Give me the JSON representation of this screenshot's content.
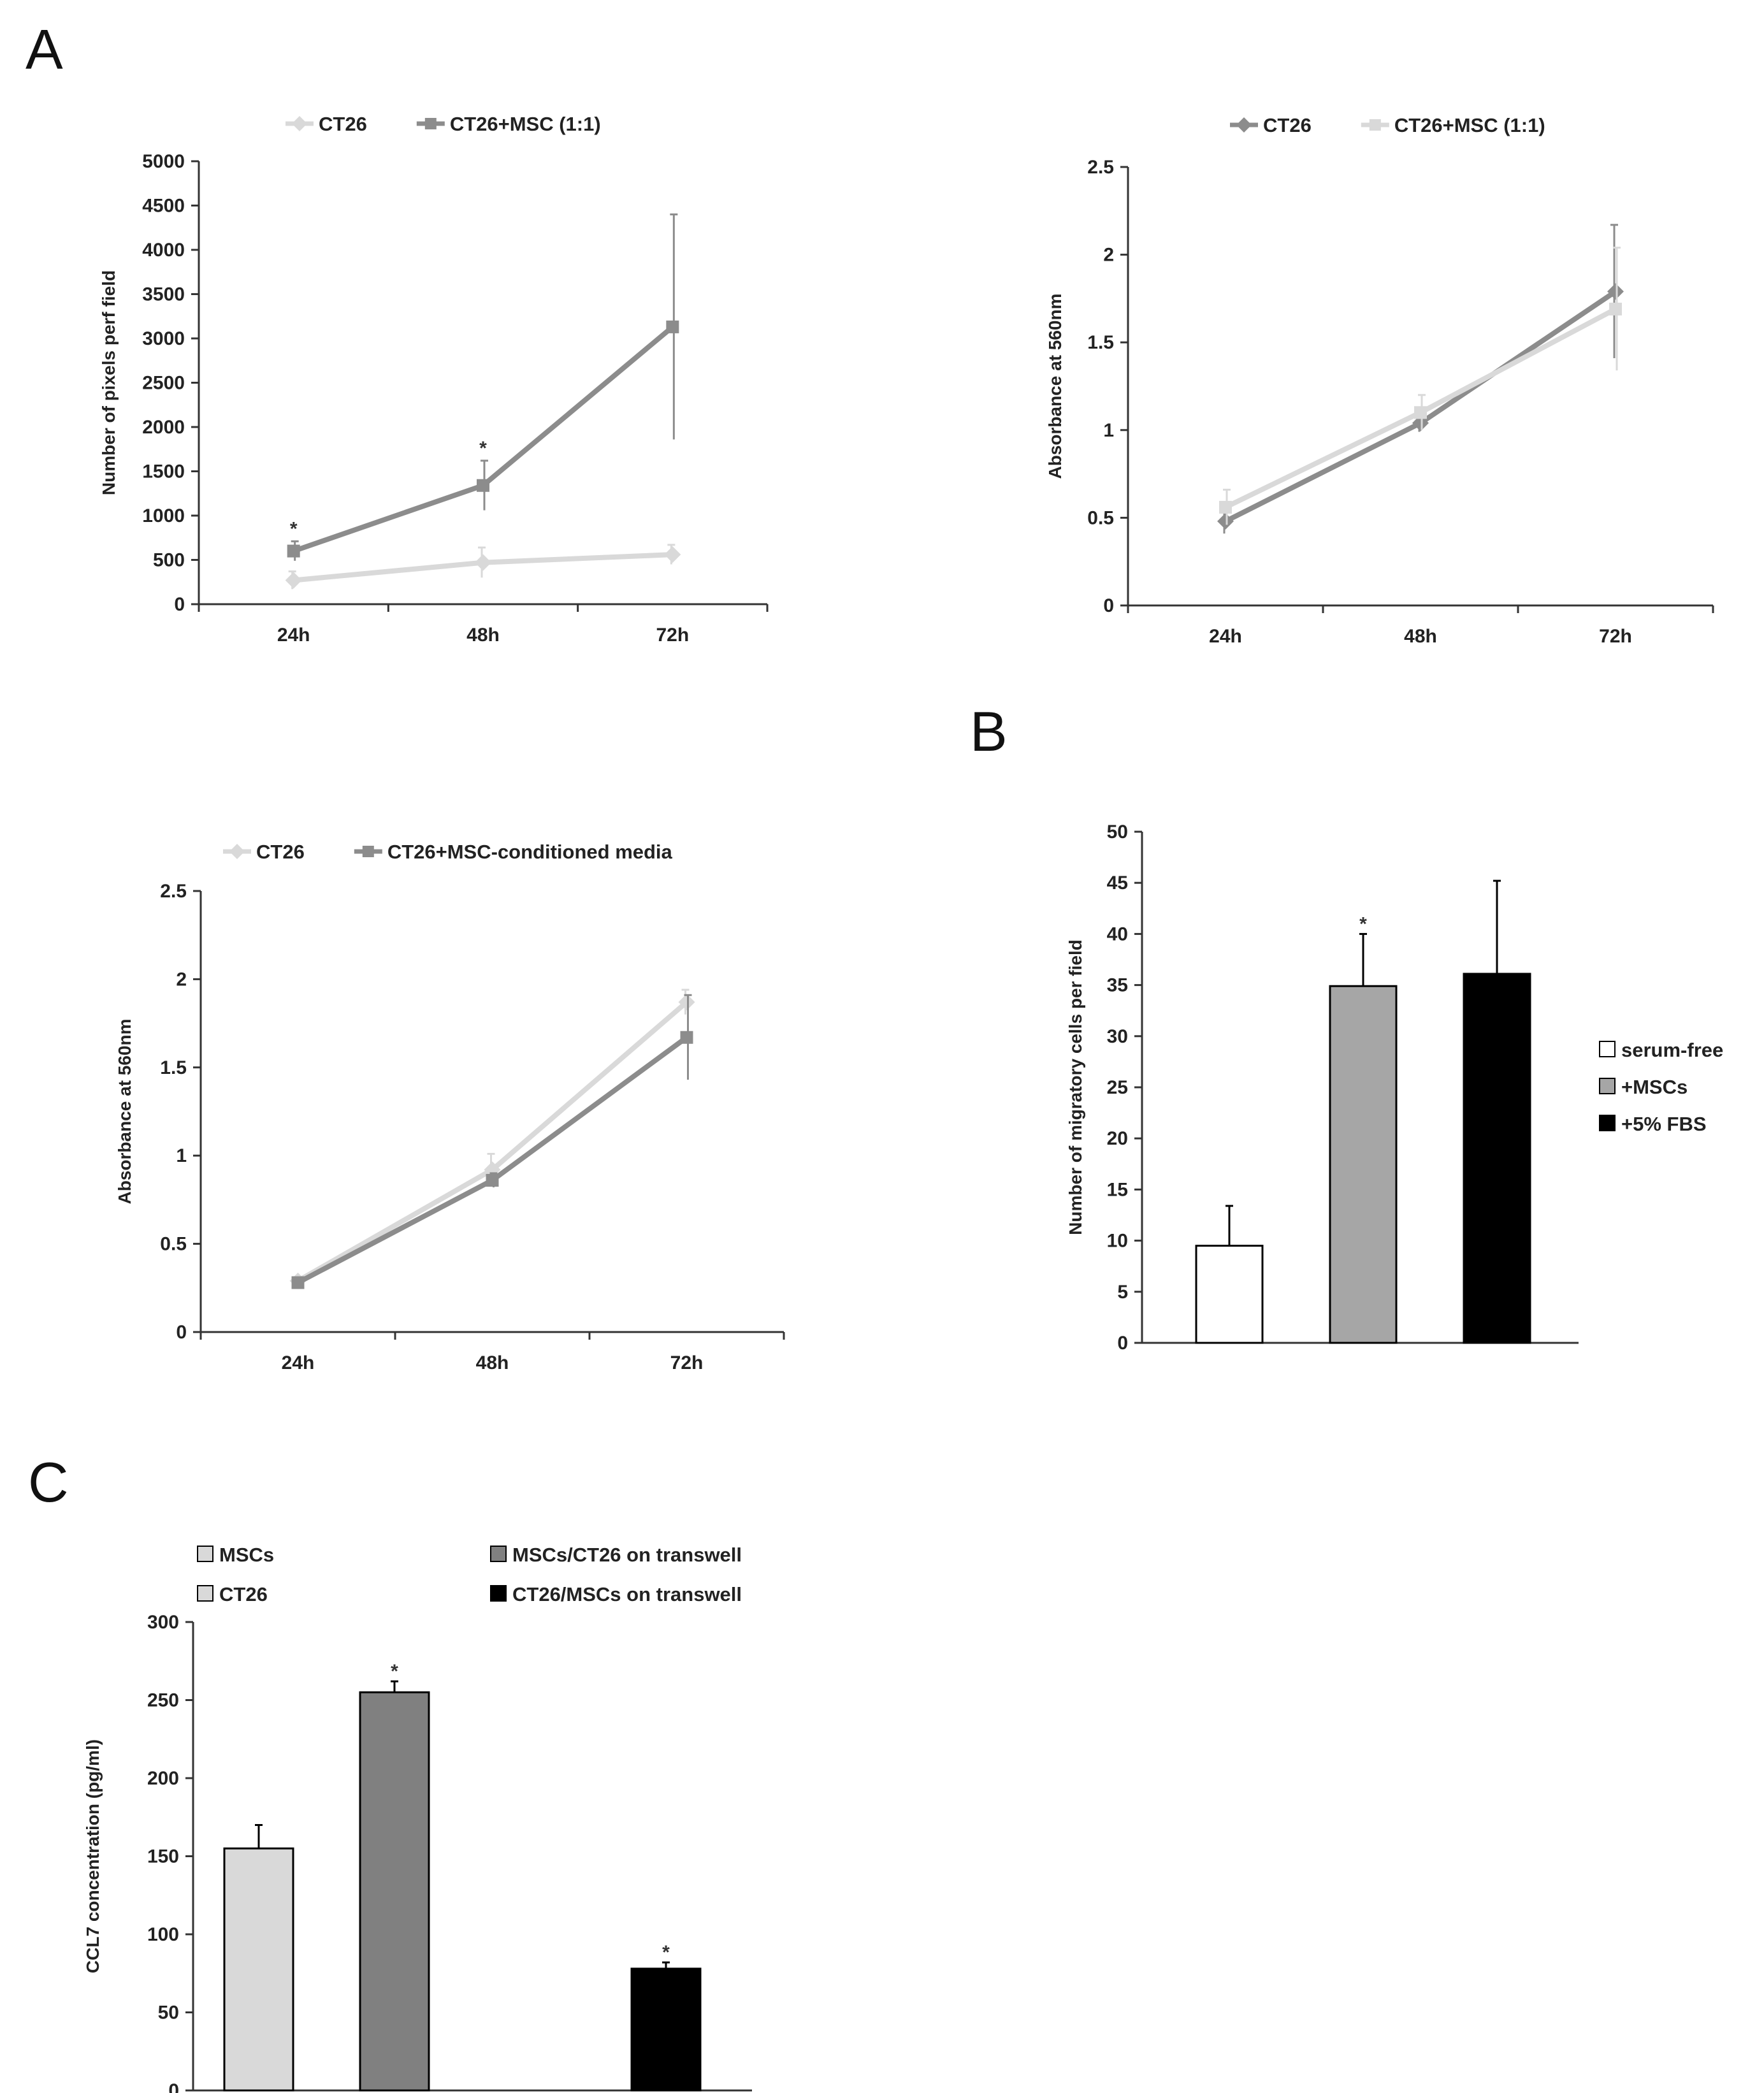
{
  "figure": {
    "panel_labels": [
      "A",
      "B",
      "C"
    ]
  },
  "chart_data": [
    {
      "id": "a1",
      "panel": "A",
      "type": "line",
      "title": "",
      "xlabel": "",
      "ylabel": "Number of pixels perf field",
      "categories": [
        "24h",
        "48h",
        "72h"
      ],
      "ylim": [
        0,
        5000
      ],
      "yticks": [
        0,
        500,
        1000,
        1500,
        2000,
        2500,
        3000,
        3500,
        4000,
        4500,
        5000
      ],
      "series": [
        {
          "name": "CT26",
          "values": [
            270,
            470,
            560
          ],
          "errors": [
            100,
            170,
            110
          ],
          "color": "#d9d9d9",
          "marker": "diamond"
        },
        {
          "name": "CT26+MSC (1:1)",
          "values": [
            600,
            1340,
            3130
          ],
          "errors": [
            110,
            280,
            1270
          ],
          "color": "#8c8c8c",
          "marker": "square"
        }
      ],
      "significance": [
        {
          "series": 1,
          "index": 0,
          "label": "*"
        },
        {
          "series": 1,
          "index": 1,
          "label": "*"
        }
      ]
    },
    {
      "id": "a2",
      "panel": "A",
      "type": "line",
      "title": "",
      "xlabel": "",
      "ylabel": "Absorbance at 560nm",
      "categories": [
        "24h",
        "48h",
        "72h"
      ],
      "ylim": [
        0,
        2.5
      ],
      "yticks": [
        0,
        0.5,
        1,
        1.5,
        2,
        2.5
      ],
      "series": [
        {
          "name": "CT26",
          "values": [
            0.48,
            1.04,
            1.79
          ],
          "errors": [
            0.07,
            0.05,
            0.38
          ],
          "color": "#8c8c8c",
          "marker": "diamond"
        },
        {
          "name": "CT26+MSC (1:1)",
          "values": [
            0.56,
            1.1,
            1.69
          ],
          "errors": [
            0.1,
            0.1,
            0.35
          ],
          "color": "#d9d9d9",
          "marker": "square"
        }
      ]
    },
    {
      "id": "a3",
      "panel": "A",
      "type": "line",
      "title": "",
      "xlabel": "",
      "ylabel": "Absorbance at 560nm",
      "categories": [
        "24h",
        "48h",
        "72h"
      ],
      "ylim": [
        0,
        2.5
      ],
      "yticks": [
        0,
        0.5,
        1,
        1.5,
        2,
        2.5
      ],
      "series": [
        {
          "name": "CT26",
          "values": [
            0.29,
            0.92,
            1.87
          ],
          "errors": [
            0.02,
            0.09,
            0.07
          ],
          "color": "#d9d9d9",
          "marker": "diamond"
        },
        {
          "name": "CT26+MSC-conditioned media",
          "values": [
            0.28,
            0.86,
            1.67
          ],
          "errors": [
            0.02,
            0.04,
            0.24
          ],
          "color": "#8c8c8c",
          "marker": "square"
        }
      ]
    },
    {
      "id": "b",
      "panel": "B",
      "type": "bar",
      "title": "",
      "xlabel": "",
      "ylabel": "Number of migratory cells per field",
      "categories": [
        "serum-free",
        "+MSCs",
        "+5% FBS"
      ],
      "values": [
        9.5,
        34.9,
        36.1
      ],
      "errors": [
        3.9,
        5.1,
        9.1
      ],
      "colors": [
        "#ffffff",
        "#a6a6a6",
        "#000000"
      ],
      "ylim": [
        0,
        50
      ],
      "yticks": [
        0,
        5,
        10,
        15,
        20,
        25,
        30,
        35,
        40,
        45,
        50
      ],
      "legend": [
        "serum-free",
        "+MSCs",
        "+5% FBS"
      ],
      "legend_position": "right",
      "significance": [
        {
          "index": 1,
          "label": "*"
        }
      ]
    },
    {
      "id": "c",
      "panel": "C",
      "type": "bar",
      "title": "",
      "xlabel": "",
      "ylabel": "CCL7 concentration (pg/ml)",
      "categories": [
        "MSCs",
        "MSCs/CT26 on transwell",
        "CT26",
        "CT26/MSCs on transwell"
      ],
      "values": [
        155,
        255,
        0,
        78
      ],
      "errors": [
        15,
        7,
        0,
        4
      ],
      "colors": [
        "#d9d9d9",
        "#808080",
        "#d9d9d9",
        "#000000"
      ],
      "ylim": [
        0,
        300
      ],
      "yticks": [
        0,
        50,
        100,
        150,
        200,
        250,
        300
      ],
      "legend": [
        "MSCs",
        "MSCs/CT26 on transwell",
        "CT26",
        "CT26/MSCs on transwell"
      ],
      "legend_position": "top",
      "significance": [
        {
          "index": 1,
          "label": "*"
        },
        {
          "index": 3,
          "label": "*"
        }
      ]
    }
  ]
}
